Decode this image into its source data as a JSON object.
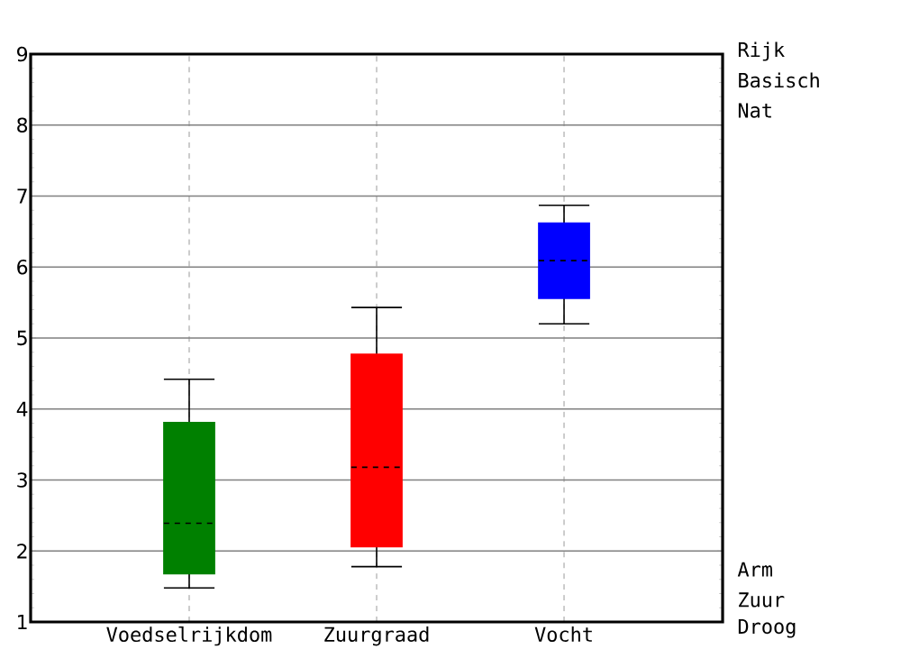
{
  "chart_data": {
    "type": "box",
    "categories": [
      "Voedselrijkdom",
      "Zuurgraad",
      "Vocht"
    ],
    "boxes": [
      {
        "low": 1.48,
        "q1": 1.68,
        "median": 2.39,
        "q3": 3.81,
        "high": 4.42
      },
      {
        "low": 1.78,
        "q1": 2.06,
        "median": 3.18,
        "q3": 4.77,
        "high": 5.43
      },
      {
        "low": 5.2,
        "q1": 5.56,
        "median": 6.09,
        "q3": 6.62,
        "high": 6.87
      }
    ],
    "colors": [
      "#008000",
      "#ff0000",
      "#0000ff"
    ],
    "ylim": [
      1,
      9
    ],
    "yticks": [
      1,
      2,
      3,
      4,
      5,
      6,
      7,
      8,
      9
    ],
    "grid": true,
    "annotations": [
      "Rijk",
      "Basisch",
      "Nat",
      "Arm",
      "Zuur",
      "Droog"
    ]
  }
}
